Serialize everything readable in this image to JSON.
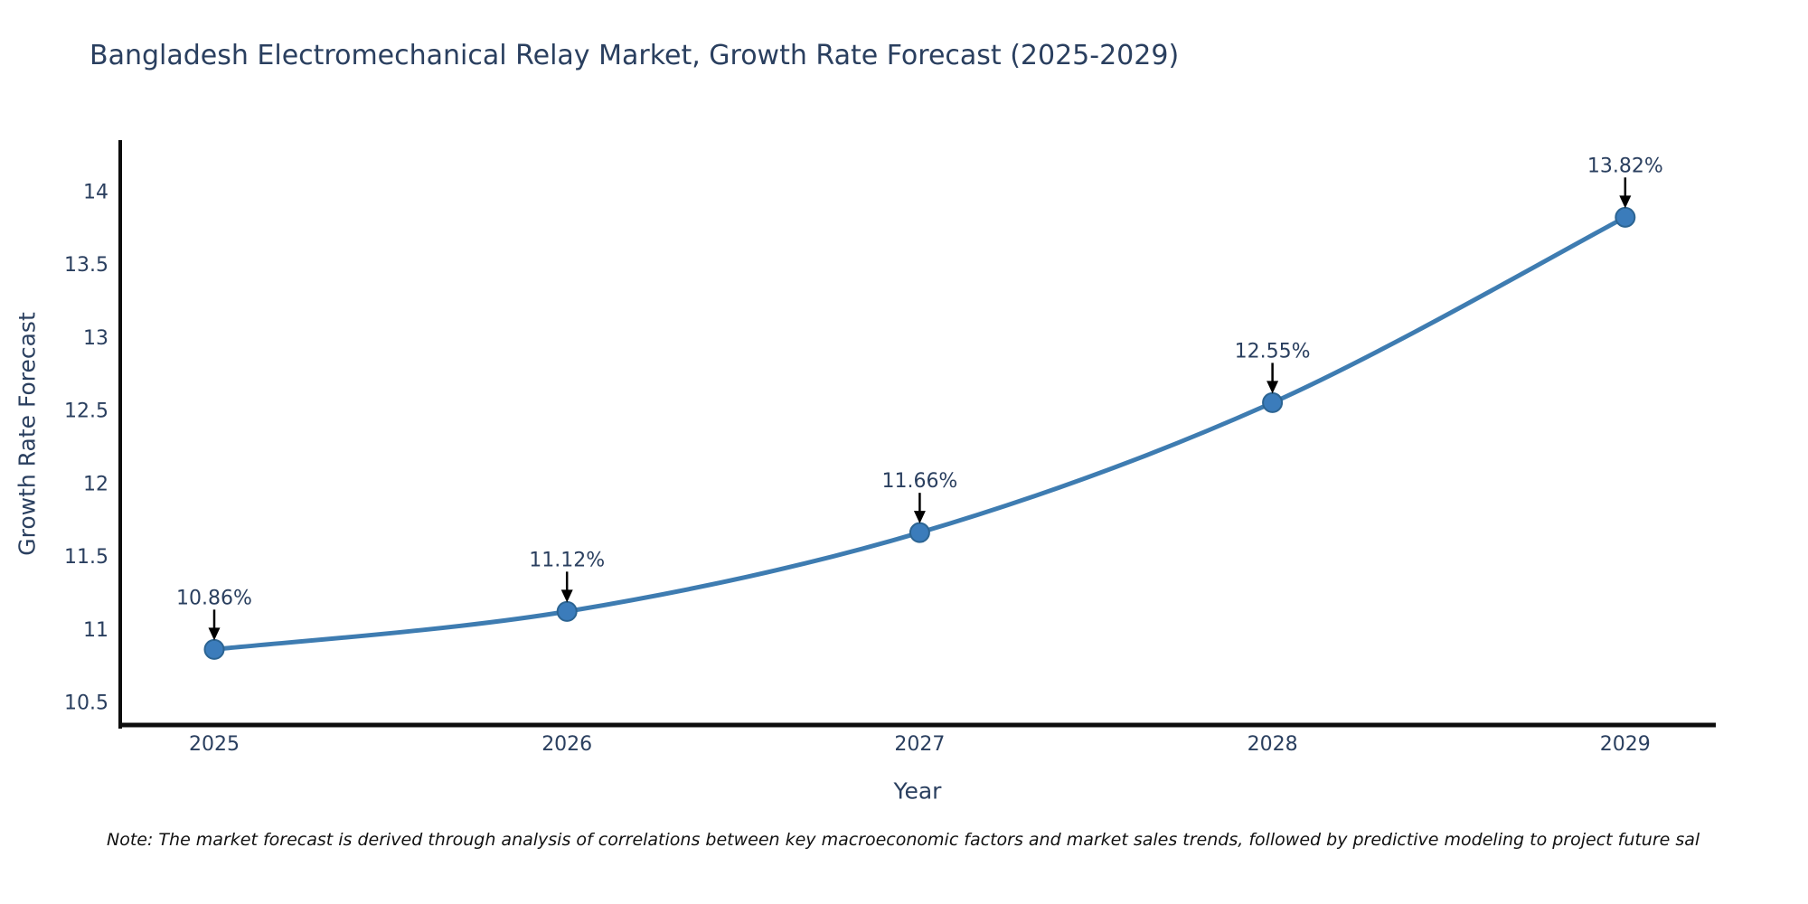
{
  "note": {
    "text": "Note: The market forecast is derived through analysis of correlations between key macroeconomic factors and market sales trends, followed by predictive modeling to project future sal"
  },
  "chart_data": {
    "type": "line",
    "title": "Bangladesh Electromechanical Relay Market, Growth Rate Forecast (2025-2029)",
    "xlabel": "Year",
    "ylabel": "Growth Rate Forecast",
    "x": [
      2025,
      2026,
      2027,
      2028,
      2029
    ],
    "values": [
      10.86,
      11.12,
      11.66,
      12.55,
      13.82
    ],
    "point_labels": [
      "10.86%",
      "11.12%",
      "11.66%",
      "12.55%",
      "13.82%"
    ],
    "yticks": [
      10.5,
      11,
      11.5,
      12,
      12.5,
      13,
      13.5,
      14
    ],
    "ylim": [
      10.33,
      14.35
    ],
    "grid": false,
    "legend": "none",
    "line_shape": "spline",
    "colors": {
      "line": "#3e7cb1",
      "marker_fill": "#3b7cbb",
      "marker_edge": "#2c6492",
      "annotation_arrow": "#000000",
      "annotation_text": "#2a3f5f",
      "tick_text": "#2a3f5f",
      "axis_line": "#0d0d0d"
    }
  }
}
